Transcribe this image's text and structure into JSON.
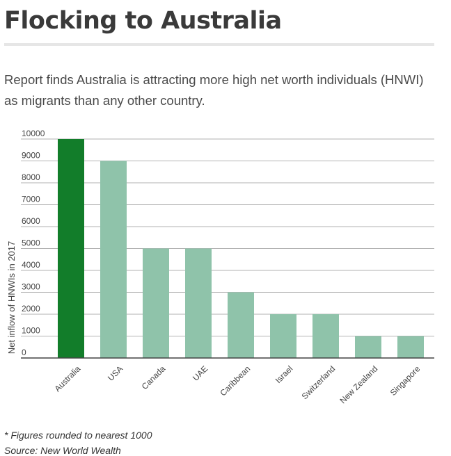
{
  "header": {
    "title": "Flocking to Australia",
    "subtitle": "Report finds Australia is attracting more high net worth individuals (HNWI) as migrants than any other country."
  },
  "chart_data": {
    "type": "bar",
    "title": "Flocking to Australia",
    "subtitle": "Report finds Australia is attracting more high net worth individuals (HNWI) as migrants than any other country.",
    "xlabel": "",
    "ylabel": "Net inflow of HNWIs in 2017",
    "categories": [
      "Australia",
      "USA",
      "Canada",
      "UAE",
      "Caribbean",
      "Israel",
      "Switzerland",
      "New Zealand",
      "Singapore"
    ],
    "values": [
      10000,
      9000,
      5000,
      5000,
      3000,
      2000,
      2000,
      1000,
      1000
    ],
    "ylim": [
      0,
      10000
    ],
    "yticks": [
      0,
      1000,
      2000,
      3000,
      4000,
      5000,
      6000,
      7000,
      8000,
      9000,
      10000
    ],
    "grid": true,
    "legend": "none",
    "colors": {
      "highlight": "#127d2a",
      "default": "#8fc3aa",
      "grid": "#999999",
      "axis": "#444444"
    },
    "highlight_index": 0
  },
  "footer": {
    "rounding_note": "* Figures rounded to nearest 1000",
    "source": "Source:  New World Wealth"
  }
}
